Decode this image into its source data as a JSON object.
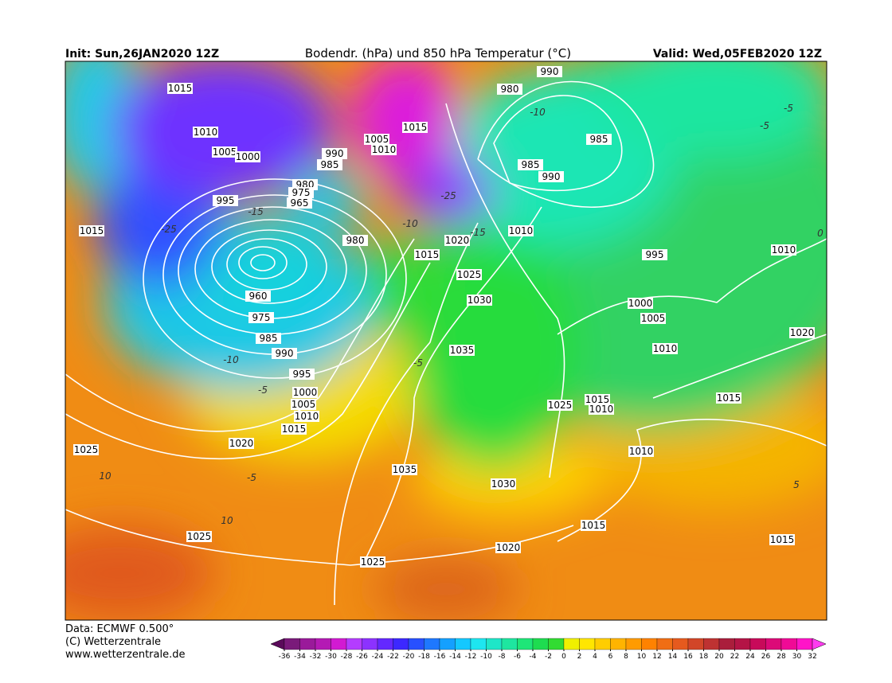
{
  "header": {
    "init": "Init: Sun,26JAN2020 12Z",
    "title": "Bodendr. (hPa) und 850 hPa Temperatur (°C)",
    "valid": "Valid: Wed,05FEB2020 12Z"
  },
  "footer": {
    "data": "Data: ECMWF   0.500°",
    "copyright": "(C) Wetterzentrale",
    "url": "www.wetterzentrale.de"
  },
  "colorbar": {
    "ticks": [
      -36,
      -34,
      -32,
      -30,
      -28,
      -26,
      -24,
      -22,
      -20,
      -18,
      -16,
      -14,
      -12,
      -10,
      -8,
      -6,
      -4,
      -2,
      0,
      2,
      4,
      6,
      8,
      10,
      12,
      14,
      16,
      18,
      20,
      22,
      24,
      26,
      28,
      30,
      32
    ],
    "colors": [
      "#5a0a5a",
      "#7a1a7a",
      "#9a1a9a",
      "#b41ab4",
      "#d21ad2",
      "#b43cff",
      "#8c32ff",
      "#6428ff",
      "#3c28ff",
      "#2850ff",
      "#1e78ff",
      "#14a0ff",
      "#14c8ff",
      "#1ee6f0",
      "#1ee6c8",
      "#1ee6a0",
      "#1ee678",
      "#1edc50",
      "#32dc32",
      "#f0f000",
      "#ffe600",
      "#ffcd00",
      "#ffb400",
      "#ff9b00",
      "#ff8200",
      "#f06e14",
      "#e65a1e",
      "#d24628",
      "#be3232",
      "#aa1e3c",
      "#b41446",
      "#c80a5a",
      "#dc0a78",
      "#f00a96",
      "#ff14c8",
      "#ff3cf0"
    ]
  },
  "isobar_labels": [
    "1015",
    "1010",
    "1005",
    "1000",
    "995",
    "1015",
    "990",
    "985",
    "980",
    "975",
    "965",
    "960",
    "975",
    "985",
    "990",
    "995",
    "1000",
    "1005",
    "1010",
    "1015",
    "1020",
    "1025",
    "1025",
    "1025",
    "1035",
    "1030",
    "1020",
    "1015",
    "1015",
    "1010",
    "1025",
    "1015",
    "1010",
    "1015",
    "1020",
    "1010",
    "1005",
    "1000",
    "995",
    "1010",
    "1010",
    "1020",
    "1015",
    "1025",
    "1030",
    "1035",
    "980",
    "1005",
    "1010",
    "1015",
    "985",
    "990",
    "985",
    "980",
    "990"
  ],
  "temperature_labels": [
    "-15",
    "-25",
    "-10",
    "-5",
    "-5",
    "-5",
    "10",
    "10",
    "5",
    "-5",
    "-5",
    "0",
    "-10",
    "-25",
    "-15",
    "-10"
  ]
}
